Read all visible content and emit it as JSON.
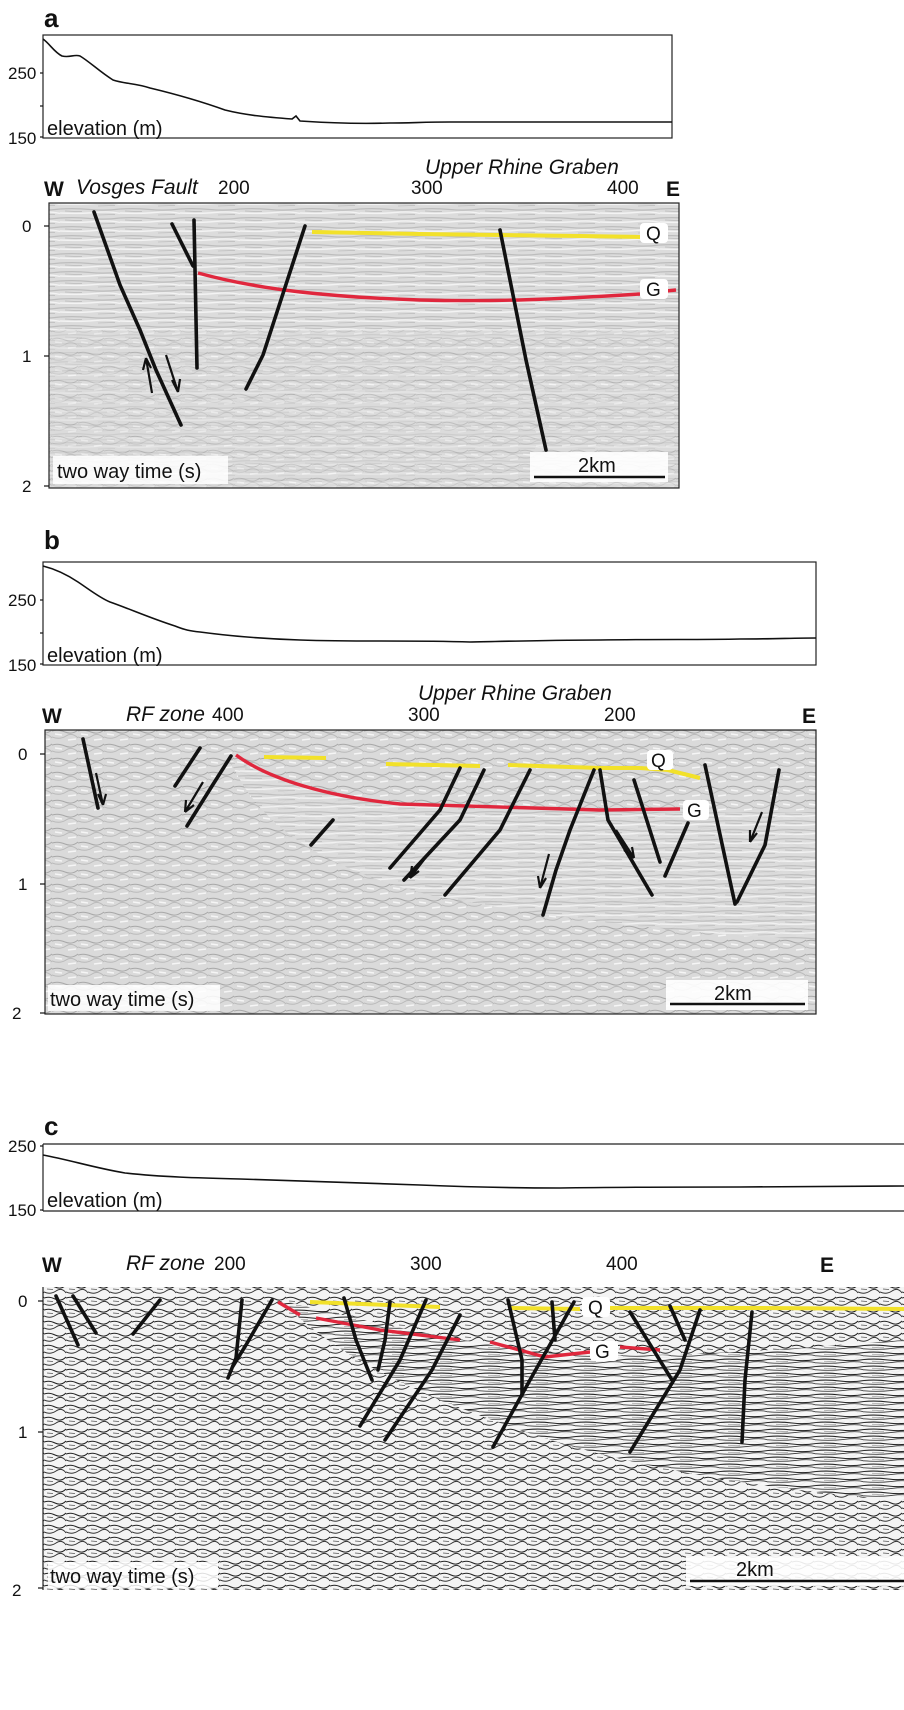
{
  "panels": [
    {
      "letter": "a",
      "elevation": {
        "label": "elevation (m)",
        "ticks": [
          "250",
          "150"
        ]
      },
      "section": {
        "west": "W",
        "east": "E",
        "fault_zone": "Vosges Fault",
        "region": "Upper Rhine Graben",
        "cdp_ticks": [
          "200",
          "300",
          "400"
        ],
        "twt_label": "two way time (s)",
        "twt_ticks": [
          "0",
          "1",
          "2"
        ],
        "scale_bar": "2km",
        "horizons": [
          "Q",
          "G"
        ]
      }
    },
    {
      "letter": "b",
      "elevation": {
        "label": "elevation (m)",
        "ticks": [
          "250",
          "150"
        ]
      },
      "section": {
        "west": "W",
        "east": "E",
        "fault_zone": "RF zone",
        "region": "Upper Rhine Graben",
        "cdp_ticks": [
          "400",
          "300",
          "200"
        ],
        "twt_label": "two way time (s)",
        "twt_ticks": [
          "0",
          "1",
          "2"
        ],
        "scale_bar": "2km",
        "horizons": [
          "Q",
          "G"
        ]
      }
    },
    {
      "letter": "c",
      "elevation": {
        "label": "elevation (m)",
        "ticks": [
          "250",
          "150"
        ]
      },
      "section": {
        "west": "W",
        "east": "E",
        "fault_zone": "RF zone",
        "region": "",
        "cdp_ticks": [
          "200",
          "300",
          "400"
        ],
        "twt_label": "two way time (s)",
        "twt_ticks": [
          "0",
          "1",
          "2"
        ],
        "scale_bar": "2km",
        "horizons": [
          "Q",
          "G"
        ]
      }
    }
  ],
  "colors": {
    "horizon_Q": "#f2e12a",
    "horizon_G": "#e0273d",
    "fault": "#111111",
    "seismic_base_a": "#d9d9d9",
    "seismic_base_c": "#f4f4f4"
  }
}
